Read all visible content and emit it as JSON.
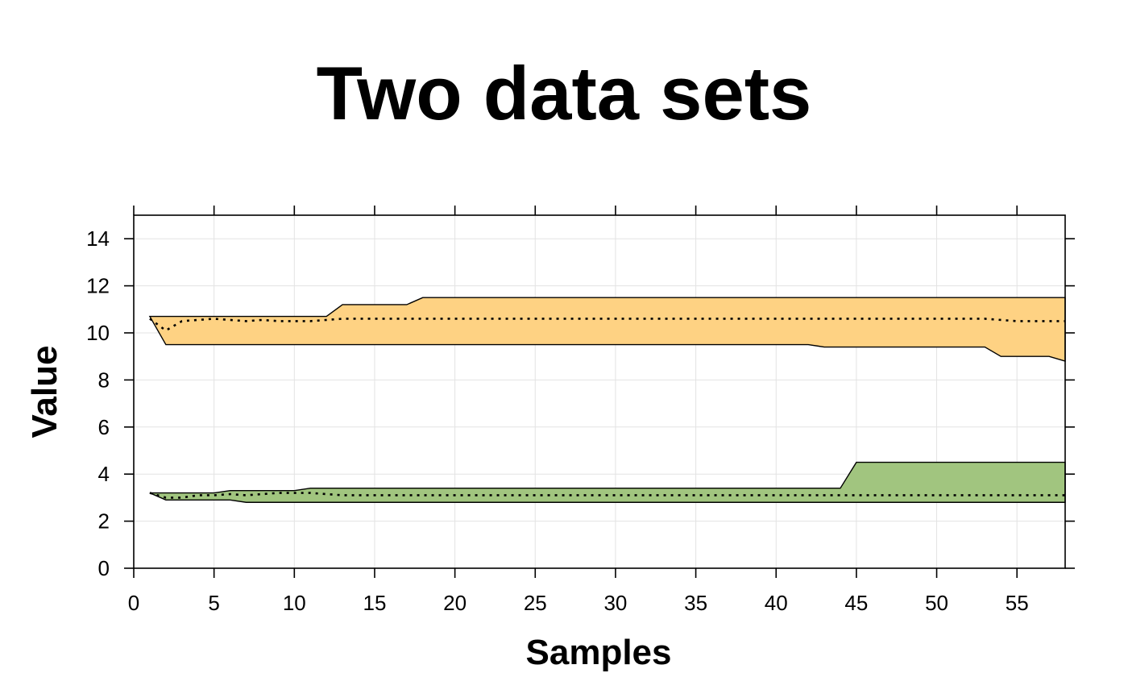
{
  "chart_data": {
    "type": "area",
    "title": "Two data sets",
    "xlabel": "Samples",
    "ylabel": "Value",
    "xlim": [
      0,
      58
    ],
    "ylim": [
      0,
      15
    ],
    "x_ticks": [
      0,
      5,
      10,
      15,
      20,
      25,
      30,
      35,
      40,
      45,
      50,
      55
    ],
    "y_ticks": [
      0,
      2,
      4,
      6,
      8,
      10,
      12,
      14
    ],
    "grid": true,
    "series": [
      {
        "color": "#FED283",
        "x": [
          1,
          2,
          3,
          4,
          5,
          6,
          7,
          8,
          9,
          10,
          11,
          12,
          13,
          14,
          15,
          16,
          17,
          18,
          19,
          20,
          21,
          22,
          23,
          24,
          25,
          26,
          27,
          28,
          29,
          30,
          31,
          32,
          33,
          34,
          35,
          36,
          37,
          38,
          39,
          40,
          41,
          42,
          43,
          44,
          45,
          46,
          47,
          48,
          49,
          50,
          51,
          52,
          53,
          54,
          55,
          56,
          57,
          58
        ],
        "upper": [
          10.7,
          10.7,
          10.7,
          10.7,
          10.7,
          10.7,
          10.7,
          10.7,
          10.7,
          10.7,
          10.7,
          10.7,
          11.2,
          11.2,
          11.2,
          11.2,
          11.2,
          11.5,
          11.5,
          11.5,
          11.5,
          11.5,
          11.5,
          11.5,
          11.5,
          11.5,
          11.5,
          11.5,
          11.5,
          11.5,
          11.5,
          11.5,
          11.5,
          11.5,
          11.5,
          11.5,
          11.5,
          11.5,
          11.5,
          11.5,
          11.5,
          11.5,
          11.5,
          11.5,
          11.5,
          11.5,
          11.5,
          11.5,
          11.5,
          11.5,
          11.5,
          11.5,
          11.5,
          11.5,
          11.5,
          11.5,
          11.5,
          11.5
        ],
        "lower": [
          10.7,
          9.5,
          9.5,
          9.5,
          9.5,
          9.5,
          9.5,
          9.5,
          9.5,
          9.5,
          9.5,
          9.5,
          9.5,
          9.5,
          9.5,
          9.5,
          9.5,
          9.5,
          9.5,
          9.5,
          9.5,
          9.5,
          9.5,
          9.5,
          9.5,
          9.5,
          9.5,
          9.5,
          9.5,
          9.5,
          9.5,
          9.5,
          9.5,
          9.5,
          9.5,
          9.5,
          9.5,
          9.5,
          9.5,
          9.5,
          9.5,
          9.5,
          9.4,
          9.4,
          9.4,
          9.4,
          9.4,
          9.4,
          9.4,
          9.4,
          9.4,
          9.4,
          9.4,
          9.0,
          9.0,
          9.0,
          9.0,
          8.8
        ],
        "mean": [
          10.6,
          10.1,
          10.5,
          10.55,
          10.6,
          10.55,
          10.5,
          10.55,
          10.5,
          10.5,
          10.5,
          10.55,
          10.6,
          10.6,
          10.6,
          10.6,
          10.6,
          10.6,
          10.6,
          10.6,
          10.6,
          10.6,
          10.6,
          10.6,
          10.6,
          10.6,
          10.6,
          10.6,
          10.6,
          10.6,
          10.6,
          10.6,
          10.6,
          10.6,
          10.6,
          10.6,
          10.6,
          10.6,
          10.6,
          10.6,
          10.6,
          10.6,
          10.6,
          10.6,
          10.6,
          10.6,
          10.6,
          10.6,
          10.6,
          10.6,
          10.6,
          10.6,
          10.6,
          10.55,
          10.5,
          10.5,
          10.5,
          10.5
        ]
      },
      {
        "color": "#A1C57F",
        "x": [
          1,
          2,
          3,
          4,
          5,
          6,
          7,
          8,
          9,
          10,
          11,
          12,
          13,
          14,
          15,
          16,
          17,
          18,
          19,
          20,
          21,
          22,
          23,
          24,
          25,
          26,
          27,
          28,
          29,
          30,
          31,
          32,
          33,
          34,
          35,
          36,
          37,
          38,
          39,
          40,
          41,
          42,
          43,
          44,
          45,
          46,
          47,
          48,
          49,
          50,
          51,
          52,
          53,
          54,
          55,
          56,
          57,
          58
        ],
        "upper": [
          3.2,
          3.2,
          3.2,
          3.2,
          3.2,
          3.3,
          3.3,
          3.3,
          3.3,
          3.3,
          3.4,
          3.4,
          3.4,
          3.4,
          3.4,
          3.4,
          3.4,
          3.4,
          3.4,
          3.4,
          3.4,
          3.4,
          3.4,
          3.4,
          3.4,
          3.4,
          3.4,
          3.4,
          3.4,
          3.4,
          3.4,
          3.4,
          3.4,
          3.4,
          3.4,
          3.4,
          3.4,
          3.4,
          3.4,
          3.4,
          3.4,
          3.4,
          3.4,
          3.4,
          4.5,
          4.5,
          4.5,
          4.5,
          4.5,
          4.5,
          4.5,
          4.5,
          4.5,
          4.5,
          4.5,
          4.5,
          4.5,
          4.5
        ],
        "lower": [
          3.2,
          2.9,
          2.9,
          2.9,
          2.9,
          2.9,
          2.8,
          2.8,
          2.8,
          2.8,
          2.8,
          2.8,
          2.8,
          2.8,
          2.8,
          2.8,
          2.8,
          2.8,
          2.8,
          2.8,
          2.8,
          2.8,
          2.8,
          2.8,
          2.8,
          2.8,
          2.8,
          2.8,
          2.8,
          2.8,
          2.8,
          2.8,
          2.8,
          2.8,
          2.8,
          2.8,
          2.8,
          2.8,
          2.8,
          2.8,
          2.8,
          2.8,
          2.8,
          2.8,
          2.8,
          2.8,
          2.8,
          2.8,
          2.8,
          2.8,
          2.8,
          2.8,
          2.8,
          2.8,
          2.8,
          2.8,
          2.8,
          2.8
        ],
        "mean": [
          3.2,
          3.0,
          3.0,
          3.1,
          3.1,
          3.15,
          3.1,
          3.15,
          3.2,
          3.2,
          3.2,
          3.15,
          3.1,
          3.1,
          3.1,
          3.1,
          3.1,
          3.1,
          3.1,
          3.1,
          3.1,
          3.1,
          3.1,
          3.1,
          3.1,
          3.1,
          3.1,
          3.1,
          3.1,
          3.1,
          3.1,
          3.1,
          3.1,
          3.1,
          3.1,
          3.1,
          3.1,
          3.1,
          3.1,
          3.1,
          3.1,
          3.1,
          3.1,
          3.1,
          3.1,
          3.1,
          3.1,
          3.1,
          3.1,
          3.1,
          3.1,
          3.1,
          3.1,
          3.1,
          3.1,
          3.1,
          3.1,
          3.1
        ]
      }
    ]
  }
}
